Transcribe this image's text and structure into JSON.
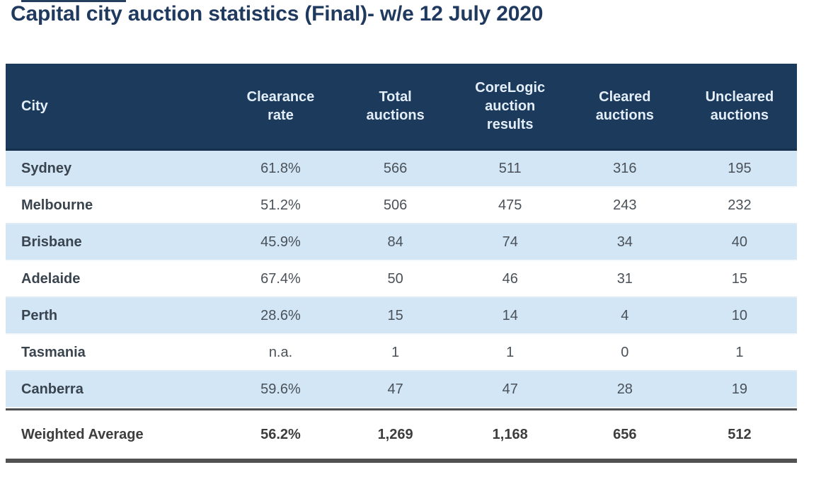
{
  "title": "Capital city auction statistics (Final)- w/e 12 July 2020",
  "chart_data": {
    "type": "table",
    "title": "Capital city auction statistics (Final)- w/e 12 July 2020",
    "columns": [
      "City",
      "Clearance rate",
      "Total auctions",
      "CoreLogic auction results",
      "Cleared auctions",
      "Uncleared auctions"
    ],
    "rows": [
      {
        "city": "Sydney",
        "clearance_rate": "61.8%",
        "total_auctions": "566",
        "corelogic_auction_results": "511",
        "cleared_auctions": "316",
        "uncleared_auctions": "195"
      },
      {
        "city": "Melbourne",
        "clearance_rate": "51.2%",
        "total_auctions": "506",
        "corelogic_auction_results": "475",
        "cleared_auctions": "243",
        "uncleared_auctions": "232"
      },
      {
        "city": "Brisbane",
        "clearance_rate": "45.9%",
        "total_auctions": "84",
        "corelogic_auction_results": "74",
        "cleared_auctions": "34",
        "uncleared_auctions": "40"
      },
      {
        "city": "Adelaide",
        "clearance_rate": "67.4%",
        "total_auctions": "50",
        "corelogic_auction_results": "46",
        "cleared_auctions": "31",
        "uncleared_auctions": "15"
      },
      {
        "city": "Perth",
        "clearance_rate": "28.6%",
        "total_auctions": "15",
        "corelogic_auction_results": "14",
        "cleared_auctions": "4",
        "uncleared_auctions": "10"
      },
      {
        "city": "Tasmania",
        "clearance_rate": "n.a.",
        "total_auctions": "1",
        "corelogic_auction_results": "1",
        "cleared_auctions": "0",
        "uncleared_auctions": "1"
      },
      {
        "city": "Canberra",
        "clearance_rate": "59.6%",
        "total_auctions": "47",
        "corelogic_auction_results": "47",
        "cleared_auctions": "28",
        "uncleared_auctions": "19"
      }
    ],
    "summary": {
      "city": "Weighted Average",
      "clearance_rate": "56.2%",
      "total_auctions": "1,269",
      "corelogic_auction_results": "1,168",
      "cleared_auctions": "656",
      "uncleared_auctions": "512"
    },
    "layout": {
      "header_position": "top",
      "alternating_row_shading": true,
      "summary_row_divider": true
    }
  },
  "colors": {
    "header_bg": "#1b3a5c",
    "header_text": "#e4eef8",
    "row_alt_bg": "#d3e6f6",
    "row_bg": "#ffffff",
    "title_text": "#1f3a5e",
    "city_text": "#3a444e",
    "body_text": "#4a5158",
    "divider": "#4f4f4f"
  }
}
